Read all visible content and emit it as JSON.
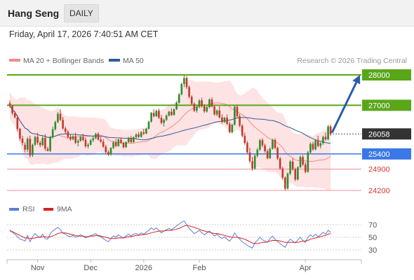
{
  "header": {
    "title": "Hang Seng",
    "period": "DAILY"
  },
  "datetime": "Friday, April 17, 2026 7:40:51 AM CET",
  "legend": {
    "ma20_label": "MA 20 + Bollinger Bands",
    "ma50_label": "MA 50",
    "ma20_color": "#f28b8b",
    "ma50_color": "#2f5a96",
    "copyright": "Research © 2026 Trading Central"
  },
  "rsi_legend": {
    "rsi_label": "RSI",
    "ma_label": "9MA",
    "rsi_color": "#5b7fd6",
    "ma_color": "#d62020"
  },
  "chart_data": [
    {
      "type": "candlestick",
      "ylim": [
        24000,
        28200
      ],
      "levels": [
        {
          "label": "28000",
          "value": 28000,
          "kind": "resistance",
          "color": "#5aa619",
          "text_color": "#ffffff"
        },
        {
          "label": "27000",
          "value": 27000,
          "kind": "resistance",
          "color": "#5aa619",
          "text_color": "#ffffff"
        },
        {
          "label": "26058",
          "value": 26058,
          "kind": "last",
          "color": "#333333",
          "text_color": "#ffffff"
        },
        {
          "label": "25400",
          "value": 25400,
          "kind": "support",
          "color": "#3b78e7",
          "text_color": "#ffffff"
        },
        {
          "label": "24900",
          "value": 24900,
          "kind": "support",
          "color": "#f08f95",
          "text_color": "#d23a3a"
        },
        {
          "label": "24200",
          "value": 24200,
          "kind": "support",
          "color": "#f08f95",
          "text_color": "#d23a3a"
        }
      ],
      "x_ticks": [
        {
          "label": "Nov",
          "index": 11
        },
        {
          "label": "Dec",
          "index": 32
        },
        {
          "label": "2026",
          "index": 53
        },
        {
          "label": "Feb",
          "index": 75
        },
        {
          "label": "Apr",
          "index": 117
        }
      ],
      "projection": {
        "from_value": 26100,
        "to_value": 28000
      },
      "ohlc": [
        [
          27070,
          27160,
          26920,
          26980
        ],
        [
          26980,
          27000,
          26680,
          26740
        ],
        [
          26740,
          26800,
          26560,
          26610
        ],
        [
          26600,
          26680,
          26140,
          26220
        ],
        [
          26230,
          26260,
          25830,
          25910
        ],
        [
          25910,
          26000,
          25680,
          25760
        ],
        [
          25700,
          25780,
          25450,
          25540
        ],
        [
          25540,
          25960,
          25460,
          25900
        ],
        [
          25900,
          26000,
          25280,
          25350
        ],
        [
          25360,
          25740,
          25300,
          25700
        ],
        [
          25700,
          26000,
          25660,
          25960
        ],
        [
          25960,
          26100,
          25700,
          25770
        ],
        [
          25770,
          25840,
          25620,
          25690
        ],
        [
          25690,
          26000,
          25650,
          25930
        ],
        [
          25930,
          26050,
          25500,
          25570
        ],
        [
          25570,
          25640,
          25480,
          25500
        ],
        [
          25500,
          26000,
          25460,
          25940
        ],
        [
          25960,
          26300,
          25900,
          26210
        ],
        [
          26210,
          26500,
          26170,
          26450
        ],
        [
          26450,
          26780,
          26410,
          26720
        ],
        [
          26720,
          26870,
          26480,
          26520
        ],
        [
          26520,
          26620,
          26200,
          26240
        ],
        [
          26240,
          26300,
          26060,
          26130
        ],
        [
          26130,
          26190,
          25900,
          25960
        ],
        [
          25960,
          26050,
          25830,
          25880
        ],
        [
          25880,
          26010,
          25850,
          25980
        ],
        [
          25980,
          26100,
          25720,
          25770
        ],
        [
          25770,
          25900,
          25650,
          25830
        ],
        [
          25830,
          26000,
          25800,
          25960
        ],
        [
          25960,
          26060,
          25810,
          25860
        ],
        [
          25860,
          25940,
          25600,
          25650
        ],
        [
          25650,
          25760,
          25580,
          25700
        ],
        [
          25700,
          25900,
          25680,
          25850
        ],
        [
          25850,
          25980,
          25790,
          25920
        ],
        [
          25920,
          26100,
          25880,
          26060
        ],
        [
          26060,
          26120,
          25840,
          25870
        ],
        [
          25870,
          25960,
          25760,
          25800
        ],
        [
          25800,
          25890,
          25600,
          25640
        ],
        [
          25640,
          25700,
          25420,
          25460
        ],
        [
          25460,
          25520,
          25330,
          25380
        ],
        [
          25380,
          25620,
          25340,
          25600
        ],
        [
          25600,
          25830,
          25560,
          25780
        ],
        [
          25780,
          25880,
          25620,
          25660
        ],
        [
          25660,
          25900,
          25640,
          25870
        ],
        [
          25870,
          25940,
          25730,
          25760
        ],
        [
          25760,
          25800,
          25580,
          25620
        ],
        [
          25620,
          25810,
          25600,
          25790
        ],
        [
          25790,
          25960,
          25760,
          25930
        ],
        [
          25930,
          26000,
          25750,
          25790
        ],
        [
          25790,
          25980,
          25770,
          25950
        ],
        [
          25950,
          26080,
          25900,
          26040
        ],
        [
          26040,
          26120,
          25920,
          25960
        ],
        [
          25960,
          26150,
          25940,
          26110
        ],
        [
          26110,
          26230,
          26020,
          26070
        ],
        [
          26070,
          26260,
          26050,
          26230
        ],
        [
          26230,
          26500,
          26200,
          26460
        ],
        [
          26460,
          26780,
          26430,
          26750
        ],
        [
          26750,
          26870,
          26600,
          26640
        ],
        [
          26640,
          26860,
          26620,
          26820
        ],
        [
          26820,
          26890,
          26550,
          26590
        ],
        [
          26590,
          26680,
          26370,
          26420
        ],
        [
          26420,
          26560,
          26300,
          26520
        ],
        [
          26520,
          26700,
          26480,
          26660
        ],
        [
          26660,
          26820,
          26630,
          26790
        ],
        [
          26790,
          26900,
          26650,
          26680
        ],
        [
          26680,
          26900,
          26660,
          26870
        ],
        [
          26870,
          27130,
          26840,
          27080
        ],
        [
          27080,
          27400,
          27050,
          27360
        ],
        [
          27360,
          27750,
          27330,
          27700
        ],
        [
          27700,
          28000,
          27600,
          27900
        ],
        [
          27900,
          27960,
          27540,
          27600
        ],
        [
          27600,
          27650,
          27230,
          27280
        ],
        [
          27280,
          27330,
          27000,
          27050
        ],
        [
          27050,
          27100,
          26780,
          26820
        ],
        [
          26820,
          26990,
          26760,
          26950
        ],
        [
          26950,
          27200,
          26900,
          27160
        ],
        [
          27160,
          27250,
          26920,
          26970
        ],
        [
          26970,
          27040,
          26750,
          26800
        ],
        [
          26800,
          26980,
          26760,
          26940
        ],
        [
          26940,
          27230,
          26900,
          27190
        ],
        [
          27190,
          27260,
          26930,
          26960
        ],
        [
          26960,
          27010,
          26660,
          26700
        ],
        [
          26700,
          26860,
          26640,
          26830
        ],
        [
          26830,
          26970,
          26560,
          26600
        ],
        [
          26600,
          26700,
          26400,
          26450
        ],
        [
          26450,
          26620,
          26420,
          26590
        ],
        [
          26590,
          26700,
          26350,
          26390
        ],
        [
          26390,
          26460,
          26080,
          26120
        ],
        [
          26120,
          26400,
          26080,
          26360
        ],
        [
          26360,
          27000,
          26330,
          26950
        ],
        [
          26950,
          27020,
          26600,
          26640
        ],
        [
          26640,
          26710,
          26280,
          26330
        ],
        [
          26330,
          26380,
          25940,
          26000
        ],
        [
          26000,
          26100,
          25700,
          25760
        ],
        [
          25760,
          25820,
          25400,
          25450
        ],
        [
          25450,
          25600,
          25100,
          25160
        ],
        [
          25160,
          25300,
          24850,
          24920
        ],
        [
          24920,
          25400,
          24880,
          25340
        ],
        [
          25340,
          25600,
          25280,
          25540
        ],
        [
          25540,
          25900,
          25500,
          25850
        ],
        [
          25850,
          25920,
          25620,
          25680
        ],
        [
          25680,
          25740,
          25440,
          25490
        ],
        [
          25490,
          25560,
          25220,
          25260
        ],
        [
          25260,
          25620,
          25230,
          25570
        ],
        [
          25570,
          25900,
          25540,
          25860
        ],
        [
          25860,
          25920,
          25560,
          25600
        ],
        [
          25600,
          25640,
          25200,
          25250
        ],
        [
          25250,
          25300,
          24880,
          24920
        ],
        [
          24920,
          24980,
          24560,
          24620
        ],
        [
          24620,
          24660,
          24200,
          24260
        ],
        [
          24260,
          24800,
          24230,
          24750
        ],
        [
          24750,
          25200,
          24700,
          25150
        ],
        [
          25150,
          25260,
          24850,
          24900
        ],
        [
          24900,
          24950,
          24500,
          24560
        ],
        [
          24560,
          25000,
          24520,
          24960
        ],
        [
          24960,
          25350,
          24930,
          25300
        ],
        [
          25300,
          25360,
          25000,
          25050
        ],
        [
          25050,
          25130,
          24760,
          24810
        ],
        [
          24810,
          25500,
          24780,
          25450
        ],
        [
          25450,
          25780,
          25400,
          25730
        ],
        [
          25730,
          25800,
          25500,
          25550
        ],
        [
          25550,
          25880,
          25520,
          25840
        ],
        [
          25840,
          26000,
          25620,
          25660
        ],
        [
          25660,
          25800,
          25580,
          25750
        ],
        [
          25750,
          26000,
          25700,
          25960
        ],
        [
          25960,
          26100,
          25830,
          25880
        ],
        [
          25880,
          26350,
          25850,
          26300
        ],
        [
          26300,
          26350,
          26000,
          26058
        ]
      ]
    },
    {
      "type": "line",
      "title": "RSI",
      "ylim": [
        20,
        80
      ],
      "y_ticks": [
        70,
        50,
        30
      ],
      "guides": [
        70,
        50,
        30
      ],
      "series": [
        {
          "name": "RSI",
          "values": [
            62,
            58,
            55,
            51,
            47,
            46,
            44,
            53,
            43,
            51,
            56,
            52,
            50,
            55,
            48,
            47,
            56,
            60,
            63,
            66,
            62,
            57,
            55,
            52,
            51,
            53,
            50,
            52,
            54,
            52,
            49,
            51,
            53,
            54,
            56,
            52,
            51,
            48,
            45,
            43,
            48,
            52,
            50,
            54,
            51,
            49,
            52,
            55,
            52,
            55,
            56,
            54,
            57,
            55,
            58,
            61,
            65,
            62,
            65,
            61,
            57,
            60,
            62,
            64,
            62,
            65,
            68,
            71,
            74,
            76,
            70,
            64,
            60,
            56,
            58,
            61,
            57,
            54,
            57,
            60,
            56,
            52,
            55,
            51,
            48,
            51,
            47,
            44,
            49,
            57,
            51,
            47,
            43,
            40,
            37,
            35,
            33,
            41,
            45,
            50,
            46,
            44,
            42,
            48,
            52,
            47,
            43,
            40,
            37,
            34,
            42,
            47,
            44,
            41,
            46,
            50,
            45,
            42,
            50,
            54,
            51,
            55,
            51,
            54,
            58,
            55,
            61,
            58
          ]
        },
        {
          "name": "9MA",
          "values": [
            60,
            59,
            57,
            55,
            53,
            51,
            49,
            49,
            48,
            48,
            49,
            50,
            50,
            51,
            51,
            50,
            51,
            52,
            54,
            56,
            57,
            57,
            57,
            56,
            55,
            54,
            53,
            52,
            52,
            52,
            51,
            51,
            52,
            52,
            53,
            53,
            52,
            51,
            50,
            49,
            48,
            48,
            48,
            49,
            49,
            49,
            50,
            51,
            51,
            52,
            53,
            53,
            54,
            54,
            55,
            56,
            57,
            58,
            59,
            60,
            60,
            60,
            61,
            61,
            61,
            62,
            63,
            64,
            66,
            68,
            69,
            68,
            67,
            66,
            64,
            63,
            61,
            60,
            59,
            58,
            57,
            56,
            56,
            55,
            54,
            53,
            52,
            51,
            50,
            50,
            50,
            49,
            48,
            47,
            45,
            43,
            41,
            40,
            40,
            41,
            42,
            42,
            43,
            44,
            45,
            45,
            45,
            44,
            43,
            42,
            42,
            42,
            42,
            42,
            42,
            43,
            44,
            44,
            45,
            47,
            48,
            49,
            50,
            51,
            52,
            53,
            55,
            56
          ]
        }
      ]
    }
  ]
}
